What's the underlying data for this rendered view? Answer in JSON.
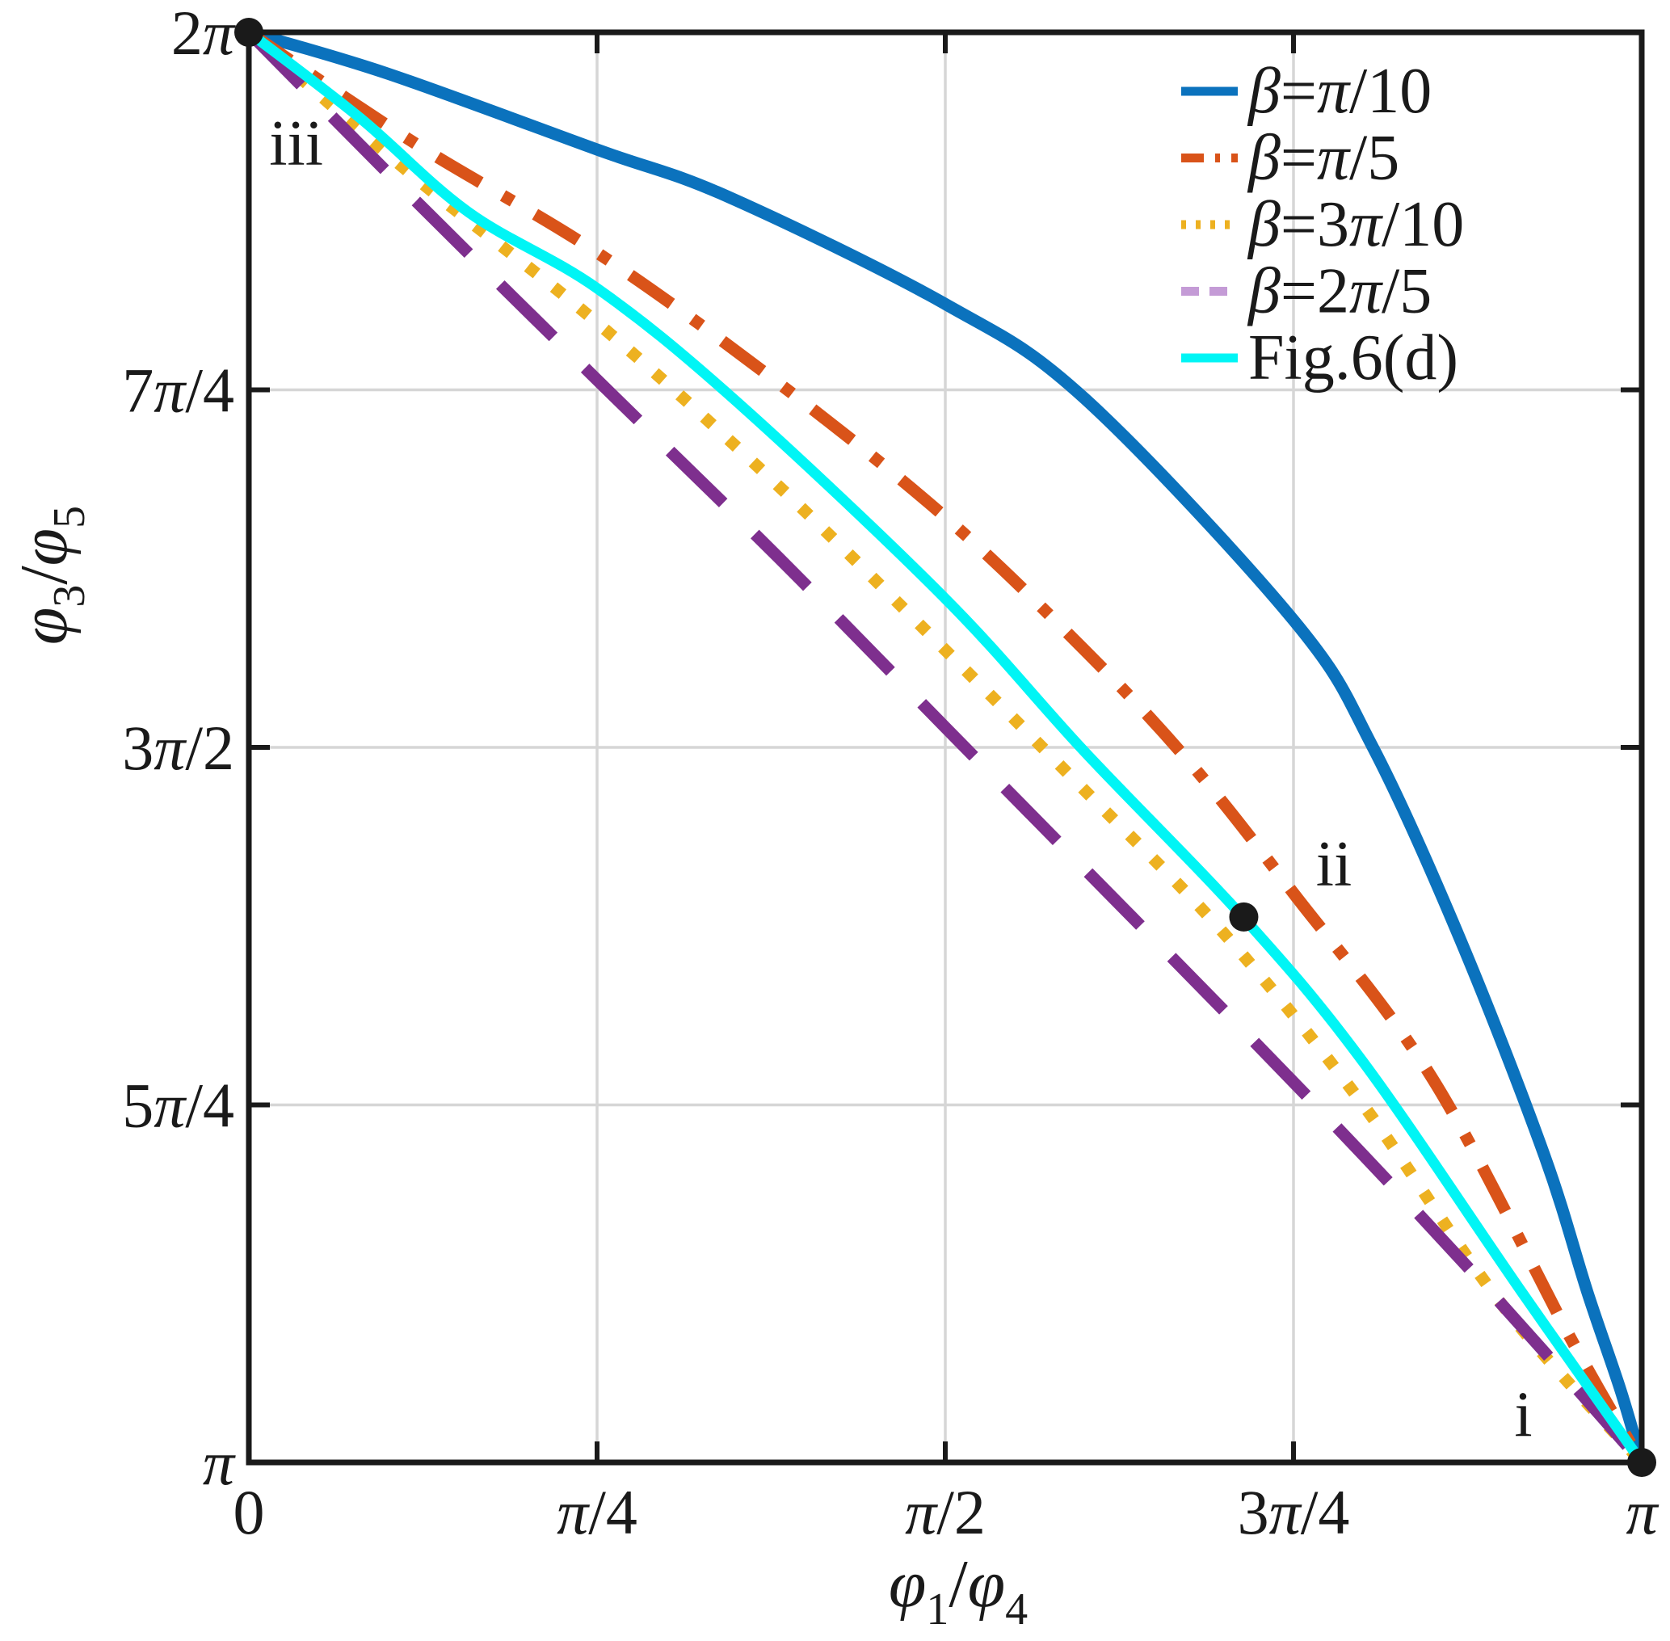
{
  "figure": {
    "background": "#ffffff",
    "axis_color": "#1a1a1a",
    "grid_color": "#d6d6d6",
    "text_color": "#1a1a1a"
  },
  "chart_data": {
    "type": "line",
    "title": "",
    "xlabel": "φ_1/φ_4",
    "ylabel": "φ_3/φ_5",
    "units": "radians (multiples of π)",
    "xlim_pi": [
      0,
      1
    ],
    "ylim_pi": [
      1,
      2
    ],
    "grid": true,
    "legend_position": "top-right",
    "x_ticks": [
      {
        "value_pi": 0,
        "label": "0"
      },
      {
        "value_pi": 0.25,
        "label": "π/4"
      },
      {
        "value_pi": 0.5,
        "label": "π/2"
      },
      {
        "value_pi": 0.75,
        "label": "3π/4"
      },
      {
        "value_pi": 1,
        "label": "π"
      }
    ],
    "y_ticks": [
      {
        "value_pi": 1,
        "label": "π"
      },
      {
        "value_pi": 1.25,
        "label": "5π/4"
      },
      {
        "value_pi": 1.5,
        "label": "3π/2"
      },
      {
        "value_pi": 1.75,
        "label": "7π/4"
      },
      {
        "value_pi": 2,
        "label": "2π"
      }
    ],
    "series": [
      {
        "name": "β=π/10",
        "color": "#0b72bd",
        "dash": "solid",
        "width": 15,
        "points_pi": [
          [
            0,
            2
          ],
          [
            0.1,
            1.971
          ],
          [
            0.25,
            1.918
          ],
          [
            0.344,
            1.885
          ],
          [
            0.5,
            1.81
          ],
          [
            0.6,
            1.744
          ],
          [
            0.75,
            1.589
          ],
          [
            0.807,
            1.5
          ],
          [
            0.87,
            1.365
          ],
          [
            0.93,
            1.215
          ],
          [
            0.961,
            1.119
          ],
          [
            0.985,
            1.05
          ],
          [
            1,
            1
          ]
        ]
      },
      {
        "name": "β=π/5",
        "color": "#d95319",
        "dash": [
          62,
          32,
          14,
          32
        ],
        "width": 15,
        "points_pi": [
          [
            0,
            2
          ],
          [
            0.12,
            1.922
          ],
          [
            0.25,
            1.846
          ],
          [
            0.38,
            1.755
          ],
          [
            0.5,
            1.661
          ],
          [
            0.6,
            1.568
          ],
          [
            0.675,
            1.49
          ],
          [
            0.75,
            1.398
          ],
          [
            0.85,
            1.268
          ],
          [
            0.95,
            1.085
          ],
          [
            1,
            1
          ]
        ]
      },
      {
        "name": "β=3π/10",
        "color": "#edb120",
        "dash": [
          14,
          27
        ],
        "width": 15,
        "points_pi": [
          [
            0,
            2
          ],
          [
            0.12,
            1.898
          ],
          [
            0.25,
            1.797
          ],
          [
            0.38,
            1.683
          ],
          [
            0.5,
            1.568
          ],
          [
            0.6,
            1.47
          ],
          [
            0.7,
            1.37
          ],
          [
            0.8,
            1.25
          ],
          [
            0.9,
            1.11
          ],
          [
            1,
            1
          ]
        ]
      },
      {
        "name": "β=2π/5",
        "color": "#7e2f8e",
        "legend_color": "#c49bd6",
        "dash": [
          92,
          55
        ],
        "legend_dash": [
          22,
          13
        ],
        "width": 15,
        "points_pi": [
          [
            0,
            2
          ],
          [
            0.12,
            1.882
          ],
          [
            0.25,
            1.757
          ],
          [
            0.38,
            1.633
          ],
          [
            0.5,
            1.514
          ],
          [
            0.6,
            1.415
          ],
          [
            0.7,
            1.316
          ],
          [
            0.8,
            1.215
          ],
          [
            0.9,
            1.11
          ],
          [
            1,
            1
          ]
        ]
      },
      {
        "name": "Fig.6(d)",
        "color": "#00f5f5",
        "dash": "solid",
        "width": 13,
        "points_pi": [
          [
            0,
            2
          ],
          [
            0.08,
            1.94
          ],
          [
            0.158,
            1.874
          ],
          [
            0.25,
            1.821
          ],
          [
            0.35,
            1.742
          ],
          [
            0.5,
            1.604
          ],
          [
            0.6,
            1.497
          ],
          [
            0.714,
            1.381
          ],
          [
            0.8,
            1.28
          ],
          [
            0.914,
            1.119
          ],
          [
            1,
            1
          ]
        ]
      }
    ],
    "markers": [
      {
        "id": "iii",
        "x_pi": 0,
        "y_pi": 2,
        "color": "#1a1a1a",
        "radius": 18
      },
      {
        "id": "ii",
        "x_pi": 0.7143,
        "y_pi": 1.3814,
        "color": "#1a1a1a",
        "radius": 18
      },
      {
        "id": "i",
        "x_pi": 1,
        "y_pi": 1,
        "color": "#1a1a1a",
        "radius": 18
      }
    ],
    "annotations": [
      {
        "text": "iii",
        "x_pi": 0.034,
        "y_pi": 1.922
      },
      {
        "text": "ii",
        "x_pi": 0.779,
        "y_pi": 1.418
      },
      {
        "text": "i",
        "x_pi": 0.915,
        "y_pi": 1.033
      }
    ]
  }
}
